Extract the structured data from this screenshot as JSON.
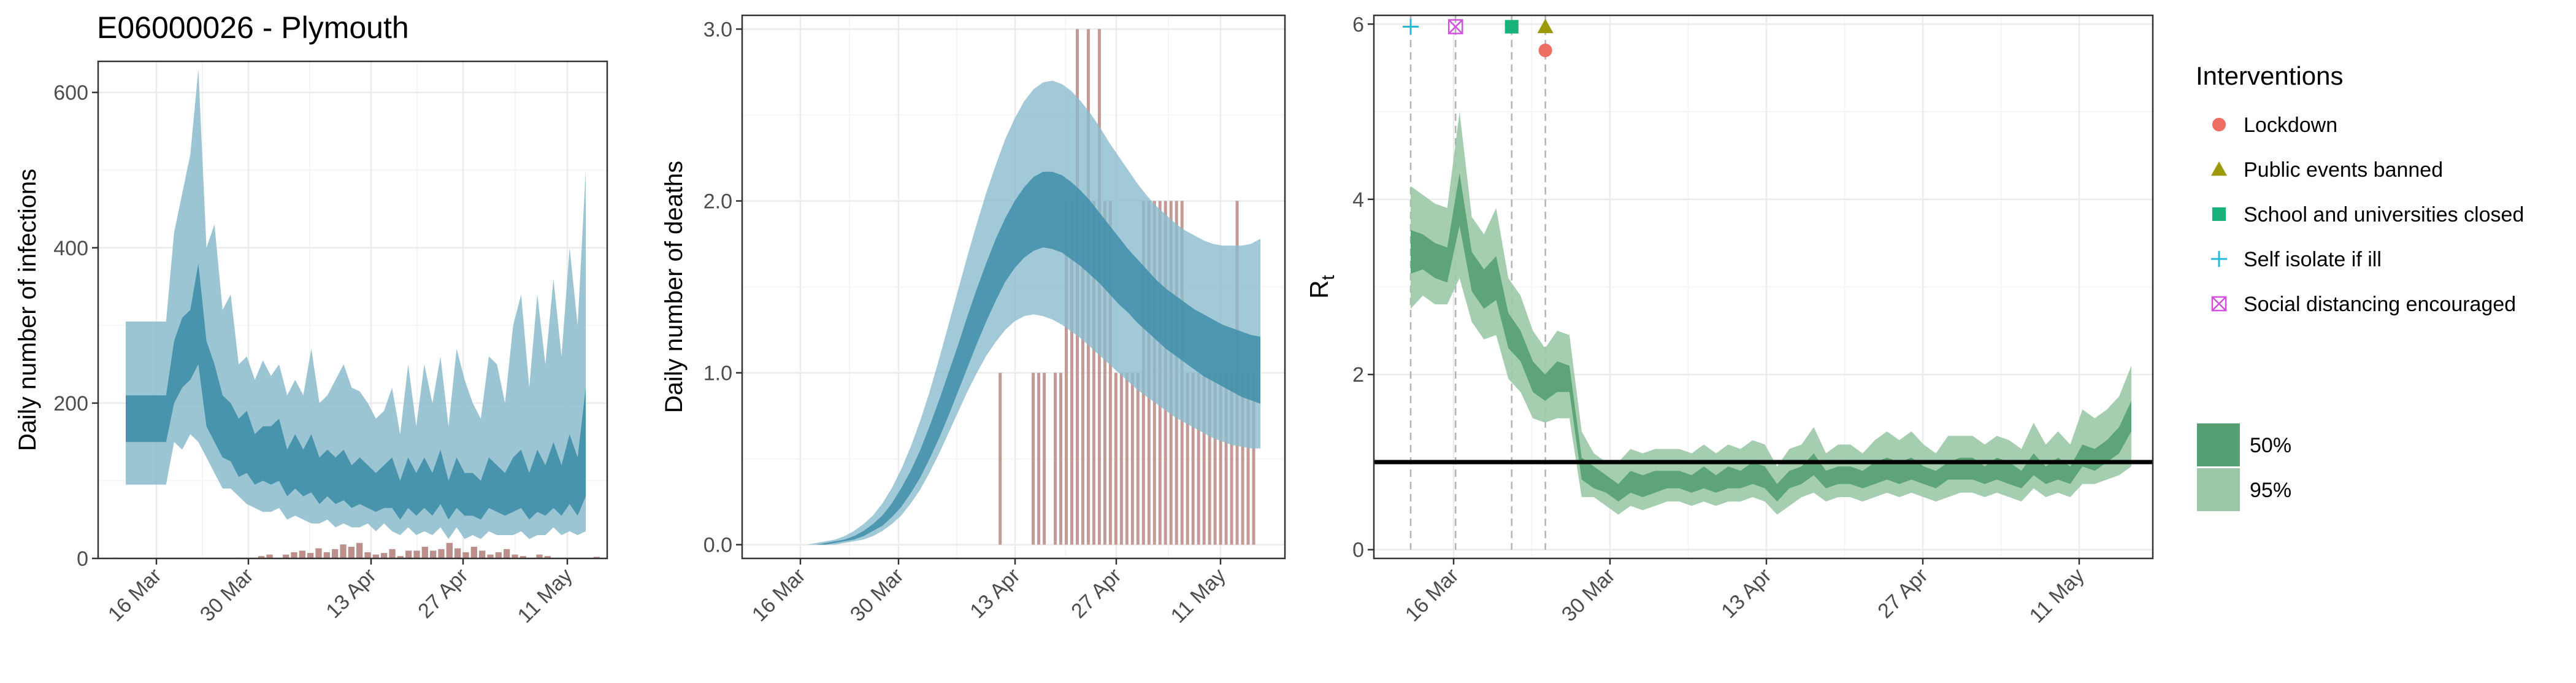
{
  "title": "E06000026 - Plymouth",
  "colors": {
    "infections_bar": "#bc8f8a",
    "band_95": "#8bbbcd",
    "band_50": "#3a8ba6",
    "rt_95": "#9bc9a8",
    "rt_50": "#55a173",
    "lockdown": "#ee6e64",
    "public_events": "#9c9a0a",
    "school": "#18b37a",
    "self_isolate": "#26b8d4",
    "social_distancing": "#d44ee0"
  },
  "chart_data": [
    {
      "type": "bar",
      "ylabel": "Daily number of infections",
      "xlabel": "",
      "ylim": [
        0,
        640
      ],
      "yticks": [
        "0",
        "200",
        "400",
        "600"
      ],
      "xticks": [
        "16 Mar",
        "30 Mar",
        "13 Apr",
        "27 Apr",
        "11 May"
      ],
      "bars": [
        1,
        0,
        0,
        0,
        0,
        0,
        0,
        0,
        0,
        0,
        0,
        0,
        0,
        0,
        0,
        1,
        0,
        0,
        3,
        5,
        0,
        5,
        8,
        10,
        7,
        13,
        8,
        12,
        18,
        15,
        20,
        8,
        5,
        7,
        12,
        3,
        10,
        10,
        15,
        10,
        12,
        20,
        13,
        8,
        15,
        10,
        5,
        8,
        12,
        5,
        3,
        0,
        5,
        3,
        0,
        0,
        0,
        0,
        0,
        2
      ],
      "ci95_upper": [
        305,
        305,
        305,
        305,
        305,
        305,
        420,
        470,
        520,
        630,
        400,
        430,
        320,
        340,
        250,
        260,
        230,
        255,
        235,
        250,
        210,
        230,
        210,
        270,
        200,
        210,
        230,
        250,
        220,
        215,
        200,
        180,
        190,
        220,
        160,
        250,
        170,
        250,
        200,
        260,
        170,
        270,
        230,
        200,
        180,
        260,
        250,
        200,
        300,
        340,
        220,
        340,
        250,
        360,
        260,
        400,
        300,
        500
      ],
      "ci95_lower": [
        95,
        95,
        95,
        95,
        95,
        95,
        150,
        140,
        160,
        150,
        130,
        110,
        90,
        90,
        80,
        70,
        65,
        60,
        60,
        65,
        50,
        55,
        50,
        45,
        45,
        50,
        40,
        45,
        40,
        40,
        45,
        35,
        45,
        35,
        30,
        40,
        30,
        35,
        30,
        40,
        25,
        40,
        25,
        30,
        25,
        35,
        30,
        30,
        30,
        35,
        25,
        30,
        30,
        40,
        30,
        35,
        30,
        35
      ],
      "ci50_upper": [
        210,
        210,
        210,
        210,
        210,
        210,
        280,
        310,
        320,
        380,
        280,
        250,
        210,
        200,
        180,
        190,
        160,
        170,
        170,
        180,
        140,
        160,
        140,
        160,
        130,
        140,
        130,
        140,
        120,
        130,
        120,
        110,
        120,
        130,
        100,
        130,
        110,
        130,
        110,
        140,
        100,
        130,
        110,
        110,
        100,
        130,
        120,
        110,
        130,
        140,
        110,
        140,
        120,
        150,
        120,
        160,
        130,
        220
      ],
      "ci50_lower": [
        150,
        150,
        150,
        150,
        150,
        150,
        200,
        220,
        230,
        250,
        170,
        150,
        130,
        125,
        105,
        110,
        95,
        100,
        95,
        100,
        80,
        90,
        80,
        85,
        70,
        80,
        70,
        75,
        65,
        70,
        65,
        60,
        65,
        65,
        50,
        65,
        55,
        65,
        55,
        70,
        50,
        65,
        55,
        55,
        50,
        65,
        60,
        55,
        60,
        65,
        50,
        60,
        55,
        65,
        55,
        70,
        55,
        80
      ]
    },
    {
      "type": "bar",
      "ylabel": "Daily number of deaths",
      "xlabel": "",
      "ylim": [
        -0.08,
        3.08
      ],
      "yticks": [
        "0.0",
        "1.0",
        "2.0",
        "3.0"
      ],
      "xticks": [
        "16 Mar",
        "30 Mar",
        "13 Apr",
        "27 Apr",
        "11 May"
      ],
      "deaths": [
        0,
        0,
        0,
        0,
        0,
        0,
        0,
        0,
        0,
        0,
        0,
        0,
        0,
        0,
        0,
        0,
        0,
        0,
        0,
        0,
        0,
        1,
        0,
        0,
        0,
        0,
        0,
        1,
        1,
        1,
        0,
        1,
        1,
        2,
        2,
        3,
        2,
        3,
        2,
        3,
        2,
        2,
        1,
        1,
        1,
        1,
        1,
        2,
        2,
        2,
        2,
        2,
        2,
        2,
        2,
        1,
        1,
        1,
        1,
        1,
        1,
        1,
        1,
        1,
        2,
        1,
        1,
        1,
        0
      ],
      "ci95_upper": [
        0.0,
        0.0,
        0.01,
        0.02,
        0.03,
        0.05,
        0.08,
        0.12,
        0.17,
        0.24,
        0.33,
        0.44,
        0.57,
        0.72,
        0.89,
        1.08,
        1.28,
        1.48,
        1.68,
        1.87,
        2.05,
        2.21,
        2.36,
        2.48,
        2.58,
        2.65,
        2.69,
        2.7,
        2.68,
        2.64,
        2.58,
        2.51,
        2.43,
        2.34,
        2.26,
        2.18,
        2.1,
        2.03,
        1.97,
        1.92,
        1.87,
        1.83,
        1.8,
        1.77,
        1.75,
        1.74,
        1.74,
        1.74,
        1.75,
        1.78
      ],
      "ci95_lower": [
        0.0,
        0.0,
        0.0,
        0.0,
        0.0,
        0.01,
        0.02,
        0.03,
        0.05,
        0.08,
        0.12,
        0.17,
        0.24,
        0.32,
        0.42,
        0.53,
        0.65,
        0.77,
        0.89,
        1.0,
        1.1,
        1.18,
        1.25,
        1.3,
        1.33,
        1.34,
        1.33,
        1.31,
        1.28,
        1.24,
        1.2,
        1.15,
        1.1,
        1.05,
        1.0,
        0.95,
        0.9,
        0.86,
        0.82,
        0.78,
        0.74,
        0.71,
        0.68,
        0.65,
        0.62,
        0.6,
        0.58,
        0.57,
        0.56,
        0.56
      ],
      "ci50_upper": [
        0.0,
        0.0,
        0.0,
        0.01,
        0.02,
        0.03,
        0.05,
        0.08,
        0.12,
        0.17,
        0.24,
        0.33,
        0.43,
        0.55,
        0.69,
        0.84,
        1.0,
        1.16,
        1.33,
        1.49,
        1.64,
        1.78,
        1.9,
        2.0,
        2.08,
        2.14,
        2.17,
        2.17,
        2.15,
        2.11,
        2.06,
        2.0,
        1.93,
        1.86,
        1.79,
        1.72,
        1.66,
        1.6,
        1.54,
        1.49,
        1.45,
        1.41,
        1.37,
        1.34,
        1.31,
        1.28,
        1.26,
        1.24,
        1.22,
        1.21
      ],
      "ci50_lower": [
        0.0,
        0.0,
        0.0,
        0.0,
        0.01,
        0.02,
        0.03,
        0.05,
        0.08,
        0.11,
        0.16,
        0.22,
        0.3,
        0.39,
        0.5,
        0.62,
        0.75,
        0.89,
        1.03,
        1.17,
        1.3,
        1.42,
        1.53,
        1.61,
        1.67,
        1.71,
        1.73,
        1.72,
        1.7,
        1.66,
        1.62,
        1.57,
        1.52,
        1.46,
        1.4,
        1.35,
        1.29,
        1.24,
        1.19,
        1.14,
        1.1,
        1.06,
        1.02,
        0.98,
        0.95,
        0.92,
        0.89,
        0.86,
        0.84,
        0.82
      ]
    },
    {
      "type": "area",
      "ylabel": "R",
      "ylabel_sub": "t",
      "xlabel": "",
      "ylim": [
        -0.1,
        6.1
      ],
      "yticks": [
        "0",
        "2",
        "4",
        "6"
      ],
      "xticks": [
        "16 Mar",
        "30 Mar",
        "13 Apr",
        "27 Apr",
        "11 May"
      ],
      "reference_line": 1.0,
      "rt_95_upper": [
        4.15,
        4.05,
        3.95,
        3.9,
        5.0,
        3.8,
        3.6,
        3.9,
        3.1,
        2.9,
        2.5,
        2.3,
        2.5,
        2.45,
        1.35,
        1.1,
        1.0,
        1.0,
        1.15,
        1.1,
        1.15,
        1.15,
        1.15,
        1.1,
        1.2,
        1.1,
        1.2,
        1.15,
        1.25,
        1.2,
        0.95,
        1.15,
        1.2,
        1.4,
        1.1,
        1.2,
        1.2,
        1.1,
        1.25,
        1.35,
        1.25,
        1.35,
        1.2,
        1.1,
        1.3,
        1.3,
        1.3,
        1.2,
        1.3,
        1.25,
        1.15,
        1.45,
        1.2,
        1.35,
        1.2,
        1.6,
        1.5,
        1.6,
        1.75,
        2.1
      ],
      "rt_95_lower": [
        2.75,
        2.9,
        2.8,
        2.8,
        3.1,
        2.6,
        2.4,
        2.45,
        1.95,
        1.8,
        1.5,
        1.45,
        1.5,
        1.5,
        0.6,
        0.6,
        0.5,
        0.4,
        0.5,
        0.45,
        0.5,
        0.55,
        0.55,
        0.5,
        0.55,
        0.5,
        0.55,
        0.55,
        0.6,
        0.55,
        0.4,
        0.5,
        0.6,
        0.65,
        0.55,
        0.6,
        0.6,
        0.55,
        0.6,
        0.65,
        0.6,
        0.65,
        0.6,
        0.55,
        0.6,
        0.65,
        0.65,
        0.6,
        0.65,
        0.6,
        0.55,
        0.7,
        0.6,
        0.65,
        0.6,
        0.75,
        0.75,
        0.8,
        0.85,
        0.95
      ],
      "rt_50_upper": [
        3.65,
        3.6,
        3.5,
        3.45,
        4.3,
        3.4,
        3.2,
        3.35,
        2.7,
        2.5,
        2.15,
        2.0,
        2.15,
        2.1,
        1.05,
        0.95,
        0.85,
        0.75,
        0.9,
        0.85,
        0.9,
        0.9,
        0.9,
        0.85,
        0.95,
        0.85,
        0.95,
        0.9,
        1.0,
        0.95,
        0.75,
        0.9,
        0.95,
        1.1,
        0.9,
        0.95,
        0.95,
        0.9,
        1.0,
        1.05,
        1.0,
        1.05,
        0.95,
        0.9,
        1.0,
        1.05,
        1.05,
        0.95,
        1.05,
        1.0,
        0.9,
        1.1,
        0.95,
        1.05,
        0.95,
        1.2,
        1.15,
        1.25,
        1.4,
        1.7
      ],
      "rt_50_lower": [
        3.15,
        3.2,
        3.1,
        3.05,
        3.7,
        2.95,
        2.75,
        2.85,
        2.3,
        2.15,
        1.8,
        1.7,
        1.8,
        1.8,
        0.8,
        0.7,
        0.65,
        0.55,
        0.65,
        0.6,
        0.65,
        0.7,
        0.7,
        0.65,
        0.7,
        0.65,
        0.7,
        0.7,
        0.75,
        0.7,
        0.55,
        0.7,
        0.75,
        0.85,
        0.7,
        0.75,
        0.75,
        0.7,
        0.75,
        0.8,
        0.75,
        0.8,
        0.75,
        0.7,
        0.8,
        0.8,
        0.8,
        0.75,
        0.8,
        0.75,
        0.7,
        0.85,
        0.75,
        0.8,
        0.75,
        0.95,
        0.9,
        1.0,
        1.1,
        1.35
      ],
      "interventions": [
        {
          "key": "self_isolate",
          "value": 5.97,
          "day": 0
        },
        {
          "key": "social_distancing",
          "value": 5.97,
          "day": 4
        },
        {
          "key": "school",
          "value": 5.97,
          "day": 9
        },
        {
          "key": "public_events",
          "value": 5.97,
          "day": 12
        },
        {
          "key": "lockdown",
          "value": 5.7,
          "day": 12
        }
      ]
    }
  ],
  "legend": {
    "title": "Interventions",
    "items": [
      {
        "key": "lockdown",
        "label": "Lockdown"
      },
      {
        "key": "public_events",
        "label": "Public events banned"
      },
      {
        "key": "school",
        "label": "School and universities closed"
      },
      {
        "key": "self_isolate",
        "label": "Self isolate if ill"
      },
      {
        "key": "social_distancing",
        "label": "Social distancing encouraged"
      }
    ],
    "ci_items": [
      {
        "key": "rt_50",
        "label": "50%"
      },
      {
        "key": "rt_95",
        "label": "95%"
      }
    ]
  }
}
